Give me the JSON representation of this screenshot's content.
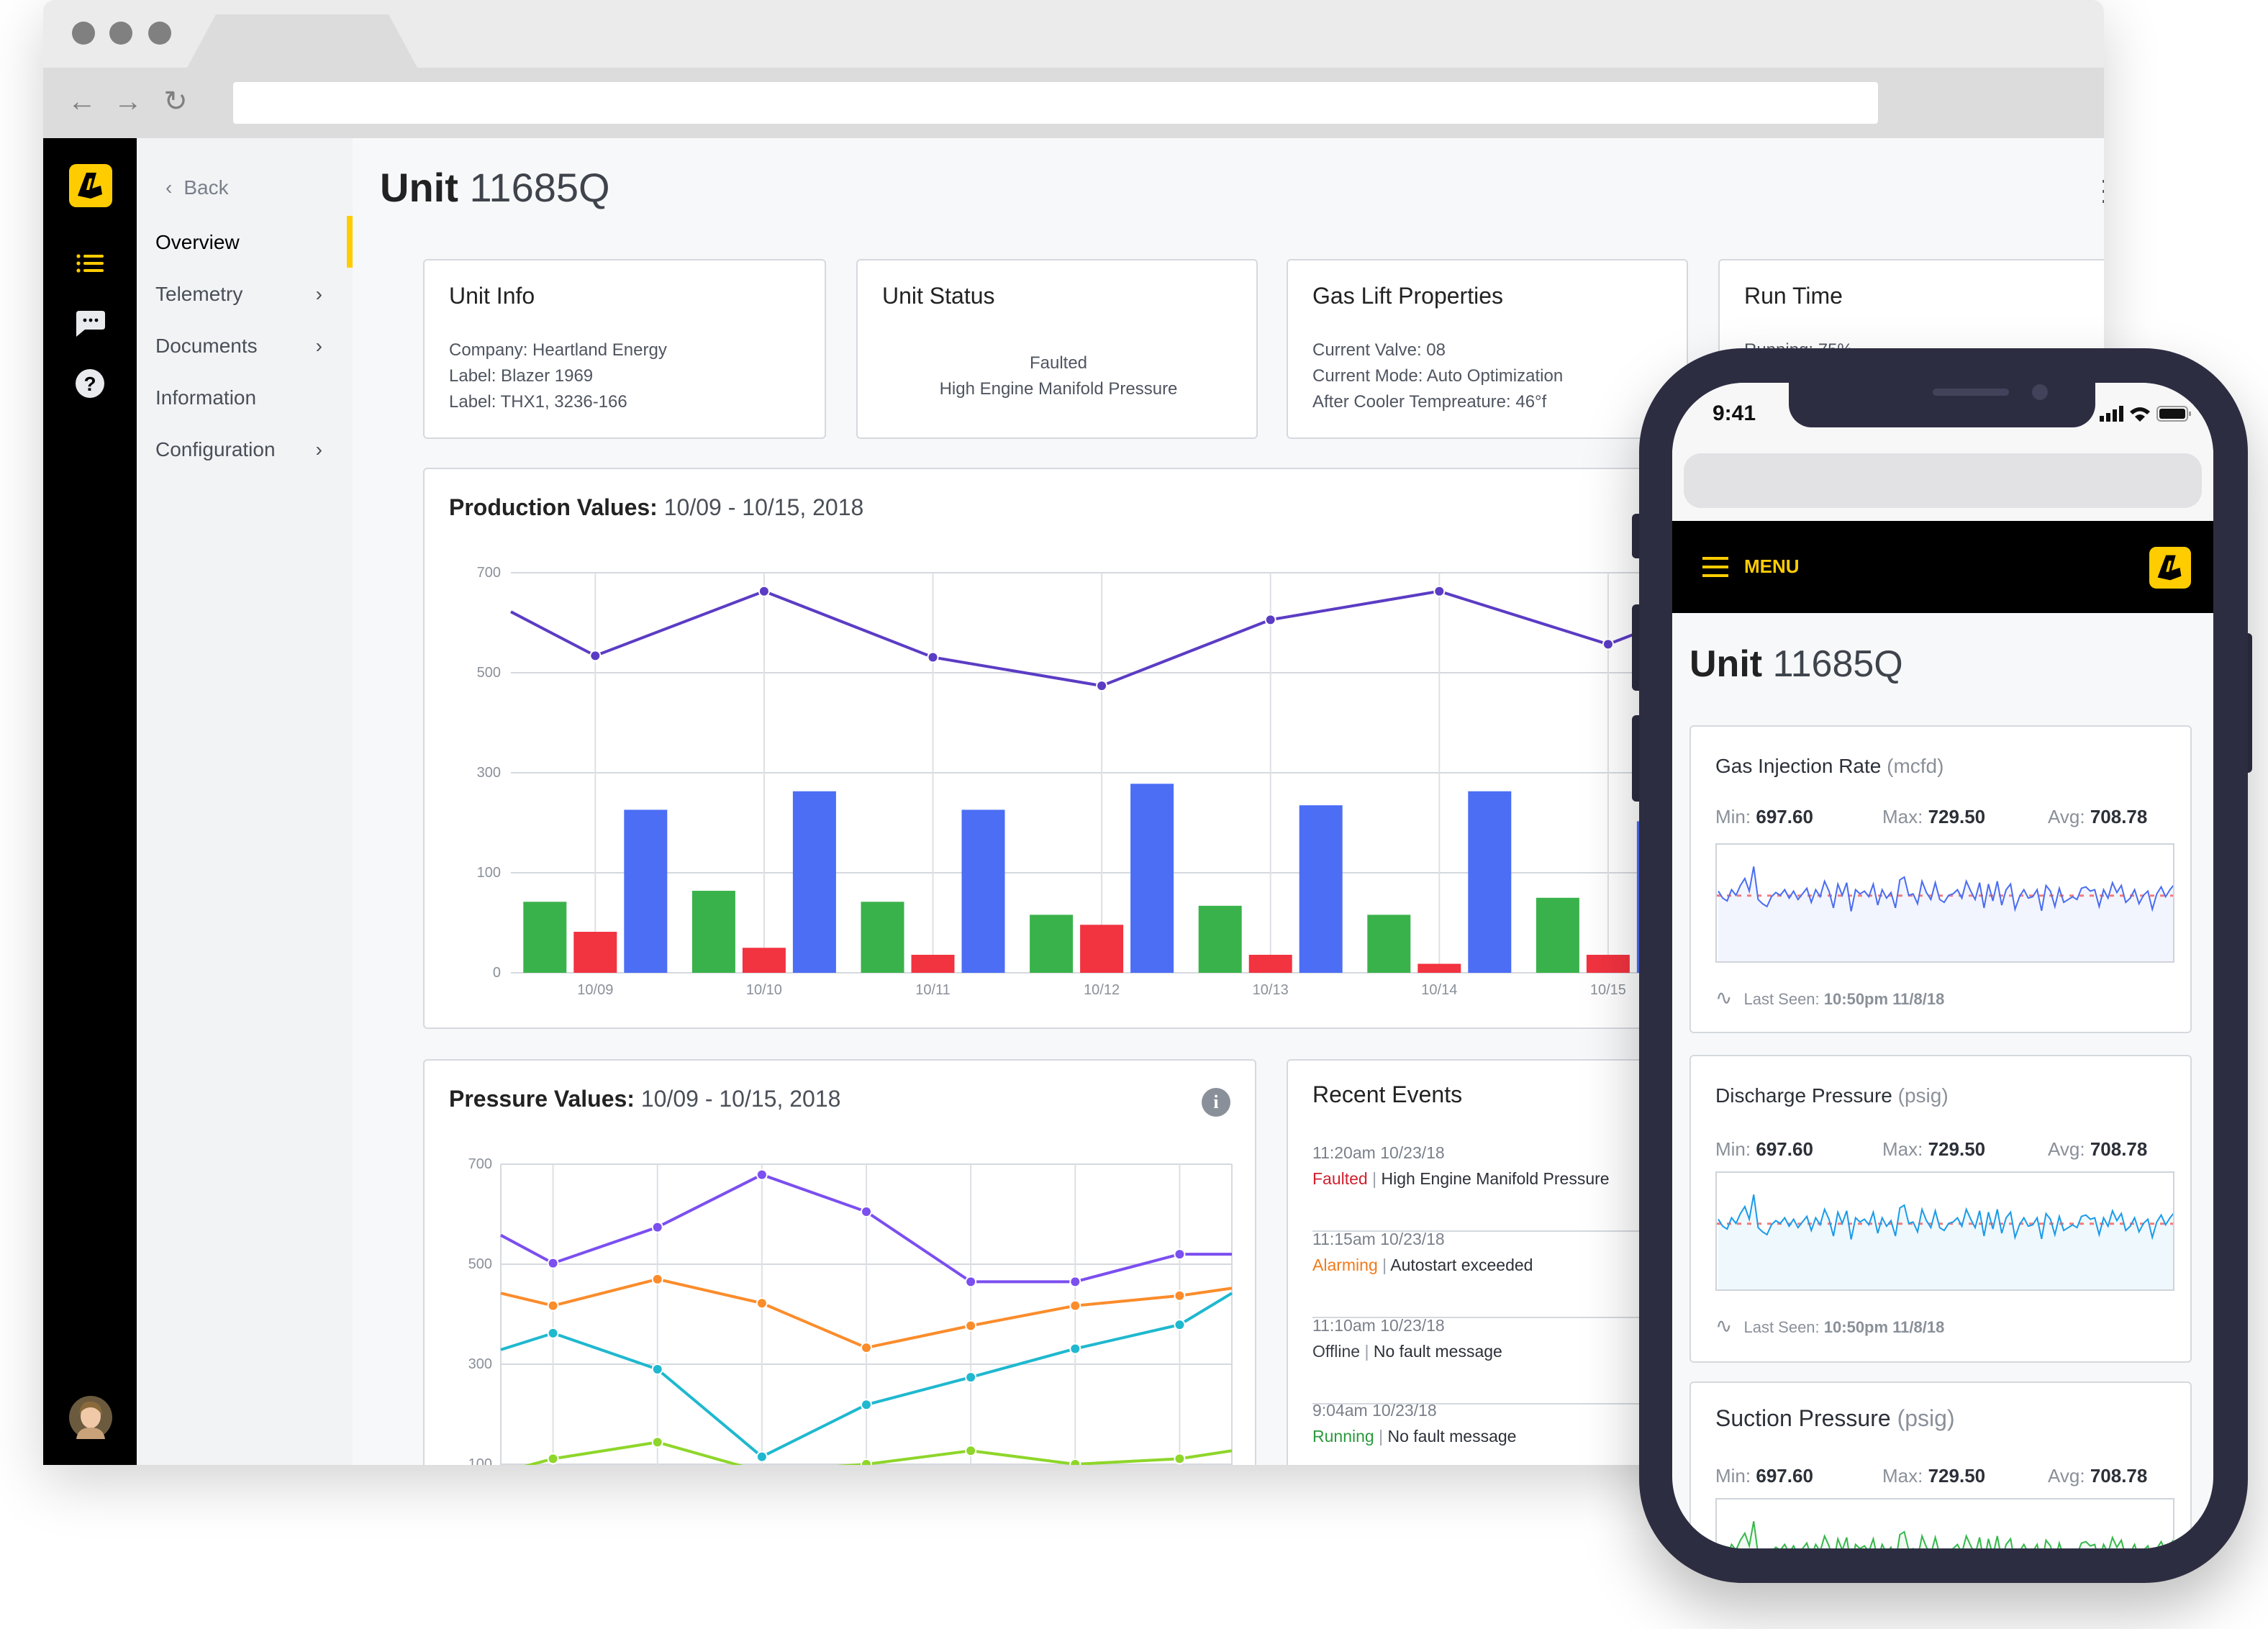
{
  "browser": {
    "url": ""
  },
  "sidebar": {
    "back_label": "Back",
    "items": [
      {
        "label": "Overview",
        "active": true,
        "has_chevron": false
      },
      {
        "label": "Telemetry",
        "has_chevron": true
      },
      {
        "label": "Documents",
        "has_chevron": true
      },
      {
        "label": "Information",
        "has_chevron": false
      },
      {
        "label": "Configuration",
        "has_chevron": true
      }
    ],
    "rail_icons": [
      "logo-icon",
      "list-icon",
      "chat-icon",
      "help-icon",
      "avatar"
    ]
  },
  "header": {
    "title_bold": "Unit",
    "title_rest": "11685Q"
  },
  "cards": {
    "unit_info": {
      "title": "Unit Info",
      "lines": [
        "Company: Heartland Energy",
        "Label: Blazer 1969",
        "Label: THX1, 3236-166"
      ]
    },
    "unit_status": {
      "title": "Unit Status",
      "lines": [
        "Faulted",
        "High Engine Manifold Pressure"
      ]
    },
    "gas_lift": {
      "title": "Gas Lift Properties",
      "lines": [
        "Current Valve: 08",
        "Current Mode: Auto Optimization",
        "After Cooler Tempreature: 46°f"
      ]
    },
    "run_time": {
      "title": "Run Time",
      "lines": [
        "Running: 75%"
      ]
    }
  },
  "production": {
    "title_bold": "Production Values:",
    "title_rest": "10/09 - 10/15, 2018"
  },
  "pressure": {
    "title_bold": "Pressure Values:",
    "title_rest": "10/09 - 10/15, 2018"
  },
  "events": {
    "title": "Recent Events",
    "items": [
      {
        "time": "11:20am 10/23/18",
        "status": "Faulted",
        "status_color": "#d0202e",
        "message": "High Engine Manifold Pressure"
      },
      {
        "time": "11:15am 10/23/18",
        "status": "Alarming",
        "status_color": "#f07a1a",
        "message": "Autostart exceeded"
      },
      {
        "time": "11:10am 10/23/18",
        "status": "Offline",
        "status_color": "#3a3f47",
        "message": "No fault message"
      },
      {
        "time": "9:04am 10/23/18",
        "status": "Running",
        "status_color": "#2a9a3e",
        "message": "No fault message"
      }
    ]
  },
  "mobile": {
    "time": "9:41",
    "menu_label": "MENU",
    "title_bold": "Unit",
    "title_rest": "11685Q",
    "cards": [
      {
        "title": "Gas Injection Rate",
        "unit": "(mcfd)",
        "min_label": "Min:",
        "min": "697.60",
        "max_label": "Max:",
        "max": "729.50",
        "avg_label": "Avg:",
        "avg": "708.78",
        "last_seen_label": "Last Seen:",
        "last_seen": "10:50pm 11/8/18",
        "color": "#4a6cf0"
      },
      {
        "title": "Discharge Pressure",
        "unit": "(psig)",
        "min_label": "Min:",
        "min": "697.60",
        "max_label": "Max:",
        "max": "729.50",
        "avg_label": "Avg:",
        "avg": "708.78",
        "last_seen_label": "Last Seen:",
        "last_seen": "10:50pm 11/8/18",
        "color": "#1a9be8"
      },
      {
        "title": "Suction Pressure",
        "unit": "(psig)",
        "min_label": "Min:",
        "min": "697.60",
        "max_label": "Max:",
        "max": "729.50",
        "avg_label": "Avg:",
        "avg": "708.78",
        "color": "#34b84a"
      }
    ]
  },
  "colors": {
    "accent": "#ffcc00",
    "rail": "#000000",
    "phone_frame": "#2d2d42"
  },
  "chart_data": [
    {
      "type": "bar+line",
      "categories": [
        "10/09",
        "10/10",
        "10/11",
        "10/12",
        "10/13",
        "10/14",
        "10/15"
      ],
      "yticks": [
        0,
        100,
        300,
        500,
        700
      ],
      "y_scale": "non-uniform (ticks equally spaced)",
      "grid": true,
      "series": [
        {
          "type": "bar",
          "color": "#3ab24b",
          "values": [
            71,
            82,
            71,
            58,
            67,
            58,
            75
          ]
        },
        {
          "type": "bar",
          "color": "#f23340",
          "values": [
            41,
            25,
            18,
            48,
            18,
            9,
            18
          ]
        },
        {
          "type": "bar",
          "color": "#4c6ef5",
          "values": [
            226,
            263,
            226,
            278,
            235,
            263,
            203
          ]
        },
        {
          "type": "line",
          "color": "#5b3cc4",
          "values": [
            534,
            663,
            531,
            474,
            606,
            663,
            557
          ],
          "continues_left": 622,
          "continues_right": 622
        }
      ]
    },
    {
      "type": "line",
      "yticks": [
        100,
        300,
        500,
        700
      ],
      "grid": true,
      "points_per_series": 7,
      "series": [
        {
          "color": "#7b4ff0",
          "values": [
            502,
            574,
            679,
            605,
            465,
            465,
            520
          ],
          "continues_left": 558,
          "continues_right": 520
        },
        {
          "color": "#fb8c2b",
          "values": [
            417,
            470,
            422,
            333,
            377,
            417,
            437
          ],
          "continues_left": 442,
          "continues_right": 452
        },
        {
          "color": "#1fb8cf",
          "values": [
            362,
            290,
            115,
            219,
            274,
            331,
            379
          ],
          "continues_left": 329,
          "continues_right": 442
        },
        {
          "color": "#8ed62a",
          "values": [
            111,
            144,
            85,
            100,
            127,
            100,
            111
          ],
          "continues_left": 83,
          "continues_right": 127
        }
      ]
    },
    {
      "type": "sparkline",
      "ylim": [
        660,
        745
      ],
      "avg": 708.78,
      "values": [
        712,
        707,
        705,
        713,
        709,
        716,
        721,
        712,
        729.5,
        706,
        703,
        701,
        708,
        711,
        709,
        713,
        707,
        712,
        706,
        710,
        714,
        704,
        713,
        708,
        719,
        712,
        700,
        717,
        709,
        718,
        697.6,
        713,
        710,
        712,
        708,
        717,
        702,
        713,
        707,
        711,
        700,
        720,
        722,
        709,
        710,
        703,
        719,
        711,
        706,
        718,
        706,
        704,
        709,
        710,
        713,
        707,
        719,
        712,
        706,
        718,
        700,
        717,
        705,
        719,
        702,
        713,
        717,
        699,
        708,
        713,
        707,
        708,
        713,
        698,
        716,
        712,
        701,
        714,
        704,
        706,
        708,
        706,
        714,
        715,
        712,
        713,
        701,
        713,
        707,
        718,
        711,
        716,
        704,
        707,
        713,
        703,
        709,
        712,
        699,
        710,
        715,
        708,
        713,
        717
      ]
    },
    {
      "type": "sparkline",
      "ylim": [
        660,
        745
      ],
      "avg": 708.78,
      "values": [
        712,
        707,
        705,
        713,
        709,
        716,
        721,
        712,
        729.5,
        706,
        703,
        701,
        708,
        711,
        709,
        713,
        707,
        712,
        706,
        710,
        714,
        704,
        713,
        708,
        719,
        712,
        700,
        717,
        709,
        718,
        697.6,
        713,
        710,
        712,
        708,
        717,
        702,
        713,
        707,
        711,
        700,
        720,
        722,
        709,
        710,
        703,
        719,
        711,
        706,
        718,
        706,
        704,
        709,
        710,
        713,
        707,
        719,
        712,
        706,
        718,
        700,
        717,
        705,
        719,
        702,
        713,
        717,
        699,
        708,
        713,
        707,
        708,
        713,
        698,
        716,
        712,
        701,
        714,
        704,
        706,
        708,
        706,
        714,
        715,
        712,
        713,
        701,
        713,
        707,
        718,
        711,
        716,
        704,
        707,
        713,
        703,
        709,
        712,
        699,
        710,
        715,
        708,
        713,
        717
      ]
    },
    {
      "type": "sparkline",
      "ylim": [
        660,
        745
      ],
      "avg": 708.78,
      "values": [
        712,
        707,
        705,
        713,
        709,
        716,
        721,
        712,
        729.5,
        706,
        703,
        701,
        708,
        711,
        709,
        713,
        707,
        712,
        706,
        710,
        714,
        704,
        713,
        708,
        719,
        712,
        700,
        717,
        709,
        718,
        697.6,
        713,
        710,
        712,
        708,
        717,
        702,
        713,
        707,
        711,
        700,
        720,
        722,
        709,
        710,
        703,
        719,
        711,
        706,
        718,
        706,
        704,
        709,
        710,
        713,
        707,
        719,
        712,
        706,
        718,
        700,
        717,
        705,
        719,
        702,
        713,
        717,
        699,
        708,
        713,
        707,
        708,
        713,
        698,
        716,
        712,
        701,
        714,
        704,
        706,
        708,
        706,
        714,
        715,
        712,
        713,
        701,
        713,
        707,
        718,
        711,
        716,
        704,
        707,
        713,
        703,
        709,
        712,
        699,
        710,
        715,
        708,
        713,
        717
      ]
    }
  ]
}
